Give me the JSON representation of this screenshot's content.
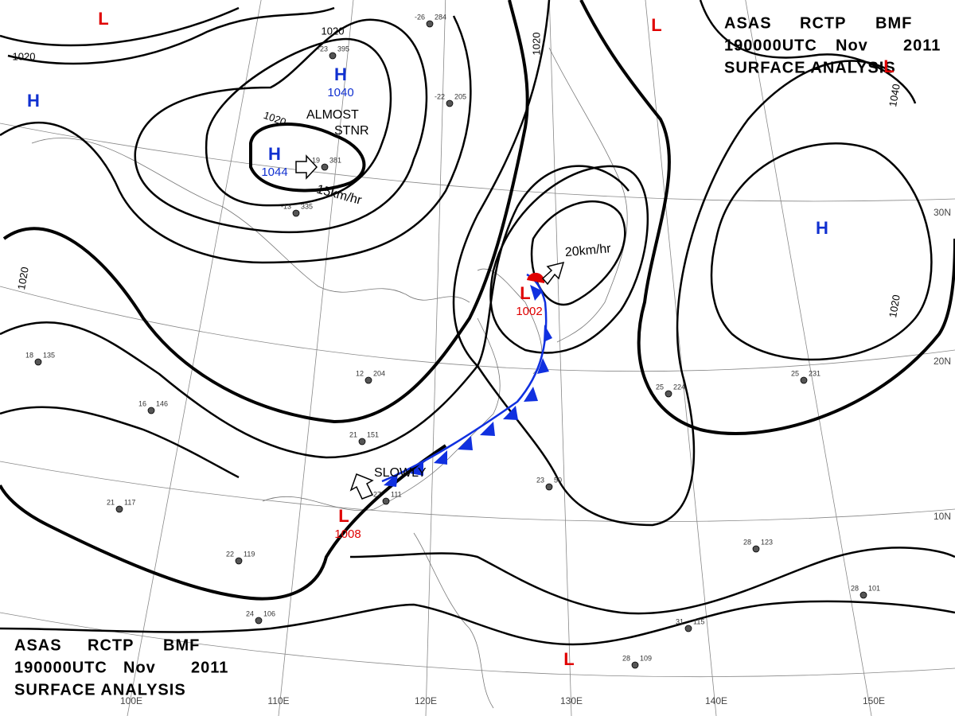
{
  "header": {
    "agency": "ASAS",
    "station": "RCTP",
    "product": "BMF",
    "time": "190000UTC",
    "month": "Nov",
    "year": "2011",
    "title": "SURFACE ANALYSIS"
  },
  "pressure_systems": [
    {
      "symbol": "L",
      "color": "#e00000"
    },
    {
      "symbol": "L",
      "color": "#e00000"
    },
    {
      "symbol": "H",
      "color": "#1030d0"
    },
    {
      "symbol": "H",
      "color": "#1030d0",
      "pressure": 1040
    },
    {
      "symbol": "H",
      "color": "#1030d0",
      "pressure": 1044
    },
    {
      "symbol": "L",
      "color": "#e00000"
    },
    {
      "symbol": "H",
      "color": "#1030d0"
    },
    {
      "symbol": "L",
      "color": "#e00000",
      "pressure": 1002
    },
    {
      "symbol": "L",
      "color": "#e00000",
      "pressure": 1008
    },
    {
      "symbol": "L",
      "color": "#e00000"
    }
  ],
  "isobar_labels": [
    1020,
    1020,
    1040,
    1020,
    1020,
    1020,
    1020
  ],
  "latitude_labels": [
    "30N",
    "20N",
    "10N"
  ],
  "longitude_labels": [
    "100E",
    "110E",
    "120E",
    "130E",
    "140E",
    "150E"
  ],
  "annotations": [
    "ALMOST",
    "STNR",
    "15km/hr",
    "20km/hr",
    "SLOWLY"
  ],
  "station_plots": [
    {
      "temperature": -19,
      "pressure": 381
    },
    {
      "temperature": -13,
      "pressure": 335
    },
    {
      "temperature": -23,
      "pressure": 395
    },
    {
      "temperature": -22,
      "pressure": 205
    },
    {
      "temperature": -26,
      "pressure": 284
    },
    {
      "temperature": 18,
      "pressure": 135
    },
    {
      "temperature": 16,
      "pressure": 146
    },
    {
      "temperature": 21,
      "pressure": 117
    },
    {
      "temperature": 22,
      "pressure": 119
    },
    {
      "temperature": 24,
      "pressure": 106
    },
    {
      "temperature": 25,
      "pressure": 224
    },
    {
      "temperature": 25,
      "pressure": 231
    },
    {
      "temperature": 28,
      "pressure": 123
    },
    {
      "temperature": 28,
      "pressure": 101
    },
    {
      "temperature": 31,
      "pressure": 115
    },
    {
      "temperature": 28,
      "pressure": 109
    },
    {
      "temperature": 23,
      "pressure": 50
    },
    {
      "temperature": 27,
      "pressure": 111
    },
    {
      "temperature": 21,
      "pressure": 151
    },
    {
      "temperature": 12,
      "pressure": 204
    }
  ]
}
